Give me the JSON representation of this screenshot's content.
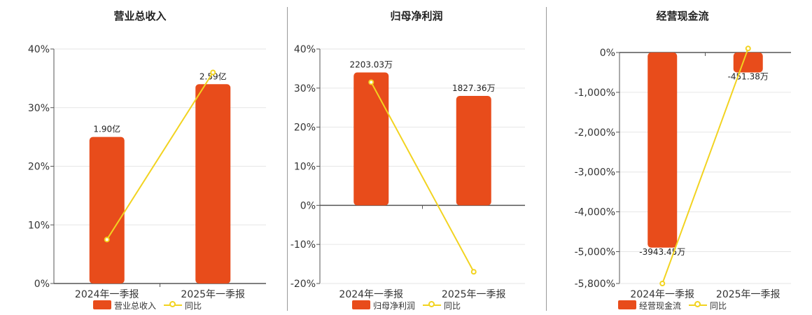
{
  "legend_line_label": "同比",
  "colors": {
    "bar": "#e84c1b",
    "line": "#f2d320",
    "grid": "#e6e6e6",
    "axis": "#555555"
  },
  "chart_data": [
    {
      "type": "bar",
      "title": "营业总收入",
      "bar_series_name": "营业总收入",
      "categories": [
        "2024年一季报",
        "2025年一季报"
      ],
      "bar_labels": [
        "1.90亿",
        "2.59亿"
      ],
      "bar_values_pct": [
        25,
        34
      ],
      "yoy_values_pct": [
        7.5,
        36
      ],
      "ylim": [
        0,
        40
      ],
      "yticks": [
        0,
        10,
        20,
        30,
        40
      ],
      "ytick_labels": [
        "0%",
        "10%",
        "20%",
        "30%",
        "40%"
      ]
    },
    {
      "type": "bar",
      "title": "归母净利润",
      "bar_series_name": "归母净利润",
      "categories": [
        "2024年一季报",
        "2025年一季报"
      ],
      "bar_labels": [
        "2203.03万",
        "1827.36万"
      ],
      "bar_values_pct": [
        34,
        28
      ],
      "yoy_values_pct": [
        31.5,
        -17
      ],
      "ylim": [
        -20,
        40
      ],
      "yticks": [
        -20,
        -10,
        0,
        10,
        20,
        30,
        40
      ],
      "ytick_labels": [
        "-20%",
        "-10%",
        "0%",
        "10%",
        "20%",
        "30%",
        "40%"
      ]
    },
    {
      "type": "bar",
      "title": "经营现金流",
      "bar_series_name": "经营现金流",
      "categories": [
        "2024年一季报",
        "2025年一季报"
      ],
      "bar_labels": [
        "-3943.45万",
        "-451.38万"
      ],
      "bar_values_pct": [
        -4900,
        -500
      ],
      "yoy_values_pct": [
        -5800,
        100
      ],
      "ylim": [
        -5800,
        0
      ],
      "yticks": [
        -5800,
        -5000,
        -4000,
        -3000,
        -2000,
        -1000,
        0
      ],
      "ytick_labels": [
        "-5,800%",
        "-5,000%",
        "-4,000%",
        "-3,000%",
        "-2,000%",
        "-1,000%",
        "0%"
      ]
    }
  ]
}
